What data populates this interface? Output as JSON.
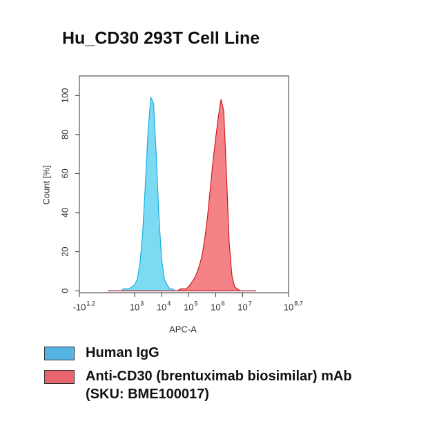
{
  "chart_data": {
    "type": "histogram-overlay",
    "title": "Hu_CD30 293T Cell Line",
    "xlabel": "APC-A",
    "ylabel": "Count [%]",
    "xscale": "biexponential",
    "xlim": [
      -15.85,
      501187234
    ],
    "xticks": [
      {
        "value": -15.85,
        "label": "-10",
        "exp": "1.2"
      },
      {
        "value": 1000,
        "label": "10",
        "exp": "3"
      },
      {
        "value": 10000,
        "label": "10",
        "exp": "4"
      },
      {
        "value": 100000,
        "label": "10",
        "exp": "5"
      },
      {
        "value": 1000000,
        "label": "10",
        "exp": "6"
      },
      {
        "value": 10000000,
        "label": "10",
        "exp": "7"
      },
      {
        "value": 501187234,
        "label": "10",
        "exp": "8.7"
      }
    ],
    "ylim": [
      -1,
      110
    ],
    "yticks": [
      0,
      20,
      40,
      60,
      80,
      100
    ],
    "x": [
      100,
      126,
      158,
      200,
      251,
      316,
      398,
      501,
      631,
      794,
      1000,
      1259,
      1585,
      1995,
      2512,
      3162,
      3981,
      5012,
      6310,
      7943,
      10000,
      12589,
      15849,
      19953,
      25119,
      31623,
      39811,
      50119,
      63096,
      79433,
      100000,
      125893,
      158489,
      199526,
      251189,
      316228,
      398107,
      501187,
      630957,
      794328,
      1000000,
      1258925,
      1584893,
      1995262,
      2511886,
      3162278,
      3981072,
      5011872,
      6309573,
      7943282,
      10000000,
      12589254,
      15848932,
      19952623,
      25118864,
      31622777
    ],
    "series": [
      {
        "name": "Human IgG",
        "color": "#6fd6f2",
        "stroke": "#18aee0",
        "legend_color": "#55b4e4",
        "values": [
          0,
          0,
          0,
          0,
          0,
          0,
          1,
          1,
          1,
          2,
          3,
          6,
          14,
          30,
          55,
          82,
          99,
          96,
          70,
          38,
          16,
          6,
          3,
          1,
          1,
          0,
          0,
          0,
          0,
          0,
          0,
          0,
          0,
          0,
          0,
          0,
          0,
          0,
          0,
          0,
          0,
          0,
          0,
          0,
          0,
          0,
          0,
          0,
          0,
          0,
          0,
          0,
          0,
          0,
          0,
          0
        ]
      },
      {
        "name": "Anti-CD30 (brentuximab biosimilar) mAb (SKU: BME100017)",
        "color": "#f2767a",
        "stroke": "#d01a1a",
        "legend_color": "#e8646e",
        "values": [
          0,
          0,
          0,
          0,
          0,
          0,
          0,
          0,
          0,
          0,
          0,
          0,
          0,
          0,
          0,
          0,
          0,
          0,
          0,
          0,
          0,
          0,
          0,
          0,
          0,
          0,
          0,
          1,
          1,
          1,
          2,
          4,
          6,
          9,
          13,
          18,
          27,
          38,
          52,
          66,
          78,
          89,
          98,
          92,
          60,
          25,
          8,
          2,
          1,
          0,
          0,
          0,
          0,
          0,
          0,
          0
        ]
      }
    ]
  }
}
